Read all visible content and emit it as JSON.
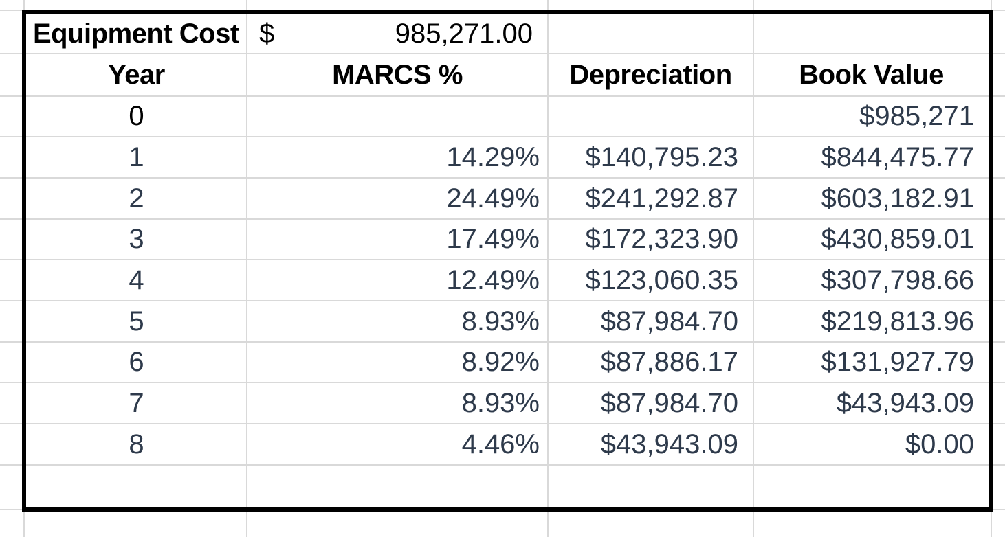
{
  "table": {
    "equipment_cost_label": "Equipment Cost",
    "equipment_cost_currency": "$",
    "equipment_cost_amount": "985,271.00",
    "headers": {
      "year": "Year",
      "marcs": "MARCS %",
      "depreciation": "Depreciation",
      "book_value": "Book Value"
    },
    "rows": [
      {
        "year": "0",
        "marcs": "",
        "depreciation": "",
        "book_value": "$985,271"
      },
      {
        "year": "1",
        "marcs": "14.29%",
        "depreciation": "$140,795.23",
        "book_value": "$844,475.77"
      },
      {
        "year": "2",
        "marcs": "24.49%",
        "depreciation": "$241,292.87",
        "book_value": "$603,182.91"
      },
      {
        "year": "3",
        "marcs": "17.49%",
        "depreciation": "$172,323.90",
        "book_value": "$430,859.01"
      },
      {
        "year": "4",
        "marcs": "12.49%",
        "depreciation": "$123,060.35",
        "book_value": "$307,798.66"
      },
      {
        "year": "5",
        "marcs": "8.93%",
        "depreciation": "$87,984.70",
        "book_value": "$219,813.96"
      },
      {
        "year": "6",
        "marcs": "8.92%",
        "depreciation": "$87,886.17",
        "book_value": "$131,927.79"
      },
      {
        "year": "7",
        "marcs": "8.93%",
        "depreciation": "$87,984.70",
        "book_value": "$43,943.09"
      },
      {
        "year": "8",
        "marcs": "4.46%",
        "depreciation": "$43,943.09",
        "book_value": "$0.00"
      }
    ],
    "colors": {
      "header_text": "#000000",
      "data_text": "#2e3a4b",
      "gridline": "#d9d9d9",
      "table_border": "#000000",
      "background": "#ffffff"
    }
  }
}
